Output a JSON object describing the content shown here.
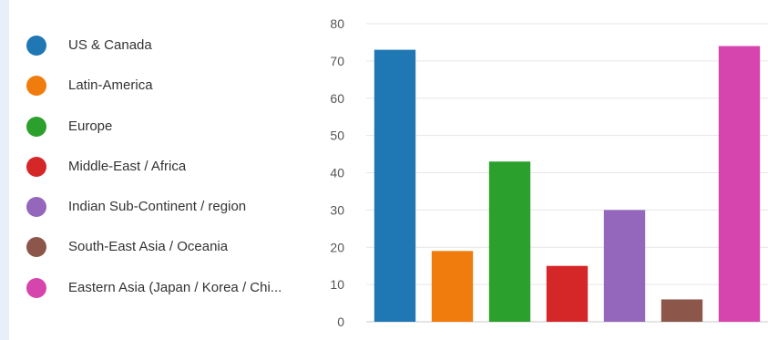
{
  "chart_data": {
    "type": "bar",
    "title": "",
    "xlabel": "",
    "ylabel": "",
    "ylim": [
      0,
      80
    ],
    "yticks": [
      0,
      10,
      20,
      30,
      40,
      50,
      60,
      70,
      80
    ],
    "grid": true,
    "legend_position": "left",
    "categories": [
      "US & Canada",
      "Latin-America",
      "Europe",
      "Middle-East / Africa",
      "Indian Sub-Continent / region",
      "South-East Asia / Oceania",
      "Eastern Asia (Japan / Korea / Chi..."
    ],
    "values": [
      73,
      19,
      43,
      15,
      30,
      6,
      74
    ],
    "colors": [
      "#1f77b4",
      "#f07c0e",
      "#2ca02c",
      "#d62728",
      "#9467bd",
      "#8c564b",
      "#d645ad"
    ]
  }
}
